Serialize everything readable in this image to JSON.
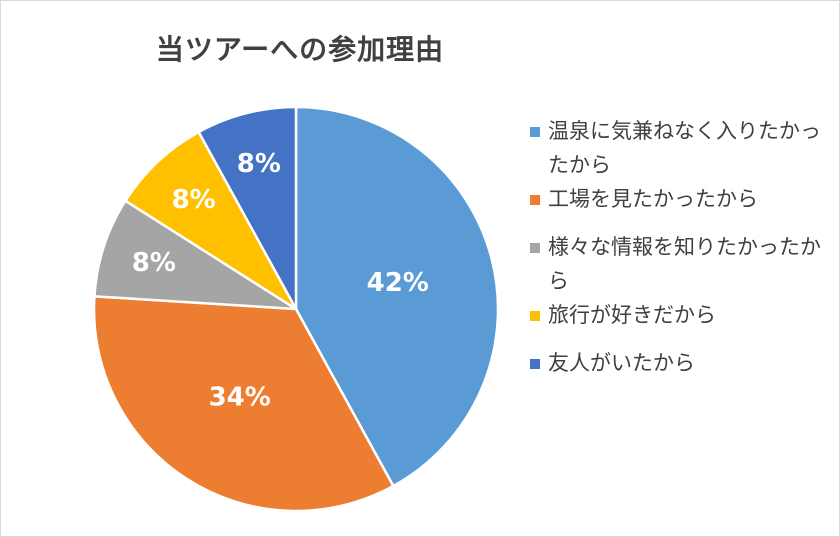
{
  "chart_data": {
    "type": "pie",
    "title": "当ツアーへの参加理由",
    "legend_position": "right",
    "slices": [
      {
        "label": "温泉に気兼ねなく入りたかったから",
        "value": 42,
        "display": "42%",
        "color": "#5B9BD5"
      },
      {
        "label": "工場を見たかったから",
        "value": 34,
        "display": "34%",
        "color": "#ED7D31"
      },
      {
        "label": "様々な情報を知りたかったから",
        "value": 8,
        "display": "8%",
        "color": "#A5A5A5"
      },
      {
        "label": "旅行が好きだから",
        "value": 8,
        "display": "8%",
        "color": "#FFC000"
      },
      {
        "label": "友人がいたから",
        "value": 8,
        "display": "8%",
        "color": "#4472C4"
      }
    ]
  }
}
